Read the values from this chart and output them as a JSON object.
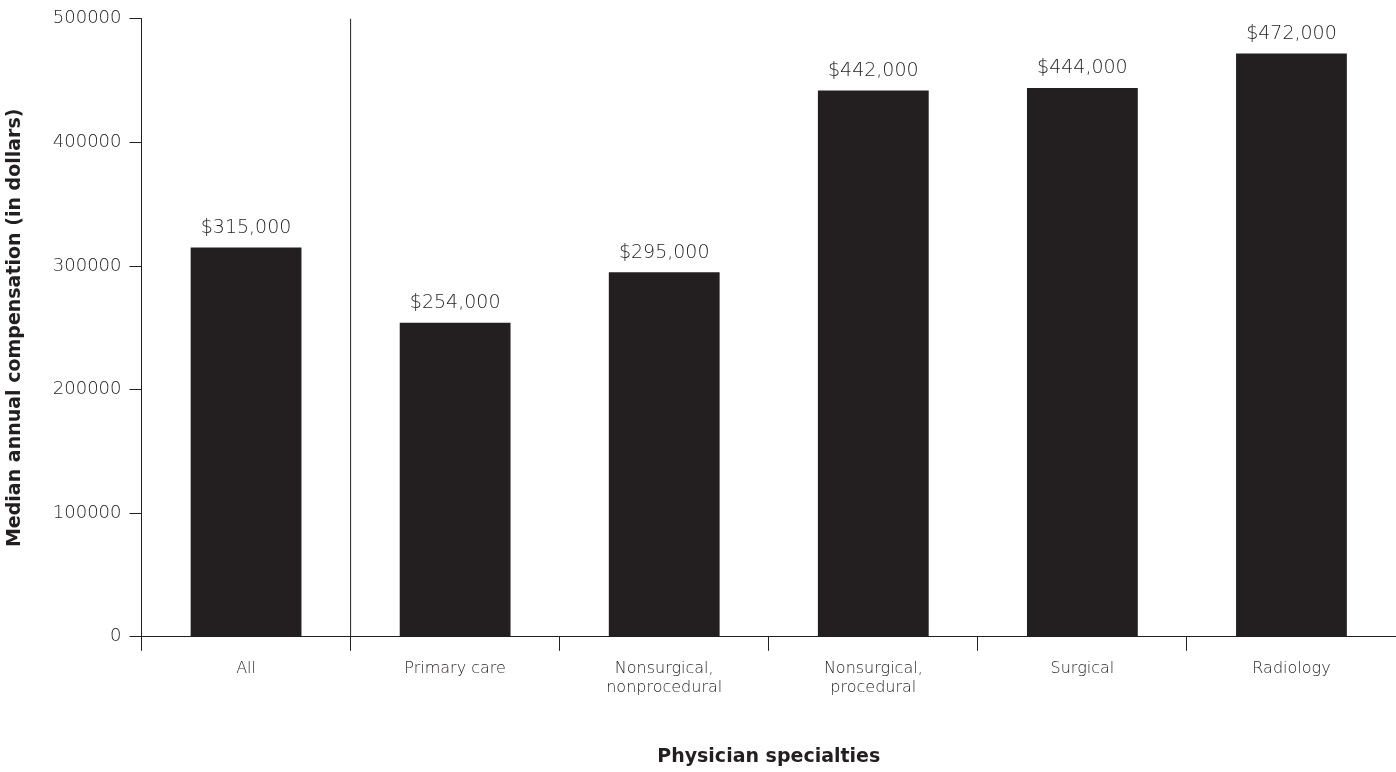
{
  "chart_data": {
    "type": "bar",
    "xlabel": "Physician specialties",
    "ylabel": "Median annual compensation (in dollars)",
    "categories": [
      "All",
      "Primary care",
      "Nonsurgical, nonprocedural",
      "Nonsurgical, procedural",
      "Surgical",
      "Radiology"
    ],
    "values": [
      315000,
      254000,
      295000,
      442000,
      444000,
      472000
    ],
    "value_labels": [
      "$315,000",
      "$254,000",
      "$295,000",
      "$442,000",
      "$444,000",
      "$472,000"
    ],
    "color": "#231f20",
    "ylim": [
      0,
      500000
    ],
    "yticks": [
      0,
      100000,
      200000,
      300000,
      400000,
      500000
    ],
    "grid": false,
    "legend": false
  }
}
